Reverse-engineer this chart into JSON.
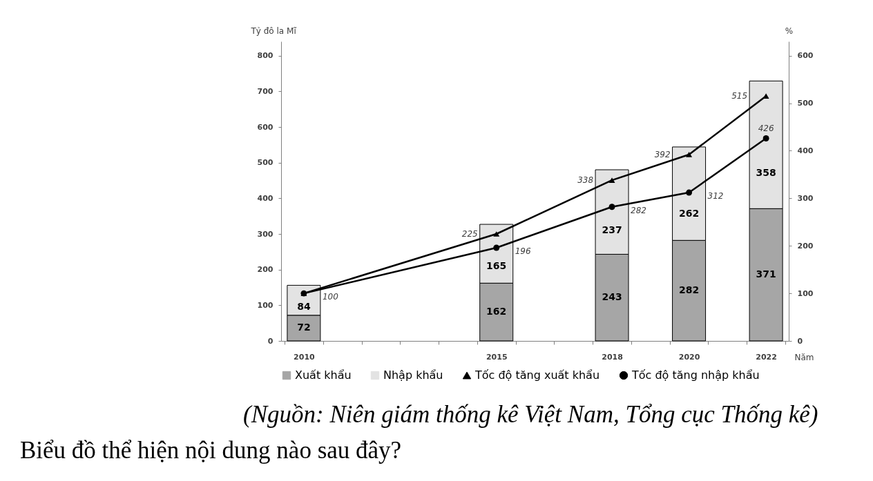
{
  "chart_data": {
    "type": "bar",
    "stacked": true,
    "x": [
      2010,
      2015,
      2018,
      2020,
      2022
    ],
    "xlim": [
      2009.5,
      2022.5
    ],
    "xticks": [
      {
        "value": 2009.5,
        "label": null
      },
      2010,
      {
        "value": 2010.5,
        "label": null
      },
      {
        "value": 2011.5,
        "label": null
      },
      {
        "value": 2012.5,
        "label": null
      },
      {
        "value": 2013.5,
        "label": null
      },
      {
        "value": 2014.5,
        "label": null
      },
      2015,
      {
        "value": 2015.5,
        "label": null
      },
      {
        "value": 2016.5,
        "label": null
      },
      {
        "value": 2017.5,
        "label": null
      },
      2018,
      {
        "value": 2018.5,
        "label": null
      },
      {
        "value": 2019.5,
        "label": null
      },
      2020,
      {
        "value": 2020.5,
        "label": null
      },
      {
        "value": 2021.5,
        "label": null
      },
      2022,
      {
        "value": 2022.5,
        "label": null
      }
    ],
    "xlabel": "Năm",
    "ylabel": "Tỷ đô la Mĩ",
    "y2label": "%",
    "ylim": [
      0,
      840
    ],
    "yticks": [
      0,
      100,
      200,
      300,
      400,
      500,
      600,
      700,
      800
    ],
    "y2lim": [
      0,
      630
    ],
    "y2ticks": [
      0,
      100,
      200,
      300,
      400,
      500,
      600
    ],
    "series": [
      {
        "name": "Xuất khẩu",
        "color": "#a6a6a6",
        "values": [
          72,
          162,
          243,
          282,
          371
        ],
        "value_labels": [
          "72",
          "162",
          "243",
          "282",
          "371"
        ]
      },
      {
        "name": "Nhập khẩu",
        "color": "#e3e3e3",
        "values": [
          84,
          165,
          237,
          262,
          358
        ],
        "value_labels": [
          "84",
          "165",
          "237",
          "262",
          "358"
        ]
      },
      {
        "name": "Tốc độ tăng xuất khẩu",
        "type": "line",
        "axis": "y2",
        "color": "#000000",
        "marker": "triangle",
        "values": [
          100,
          225,
          338,
          392,
          515
        ],
        "value_labels": [
          null,
          "225",
          "338",
          "392",
          "515"
        ]
      },
      {
        "name": "Tốc độ tăng nhập khẩu",
        "type": "line",
        "axis": "y2",
        "color": "#000000",
        "marker": "circle",
        "values": [
          100,
          196,
          282,
          312,
          426
        ],
        "value_labels": [
          "100",
          "196",
          "282",
          "312",
          "426"
        ]
      }
    ],
    "line_style": "solid",
    "legend": "bottom",
    "annotations": [
      "(Nguồn: Niên giám thống kê Việt Nam, Tổng cục Thống kê)",
      "Biểu đồ thể hiện nội dung nào sau đây?"
    ]
  }
}
